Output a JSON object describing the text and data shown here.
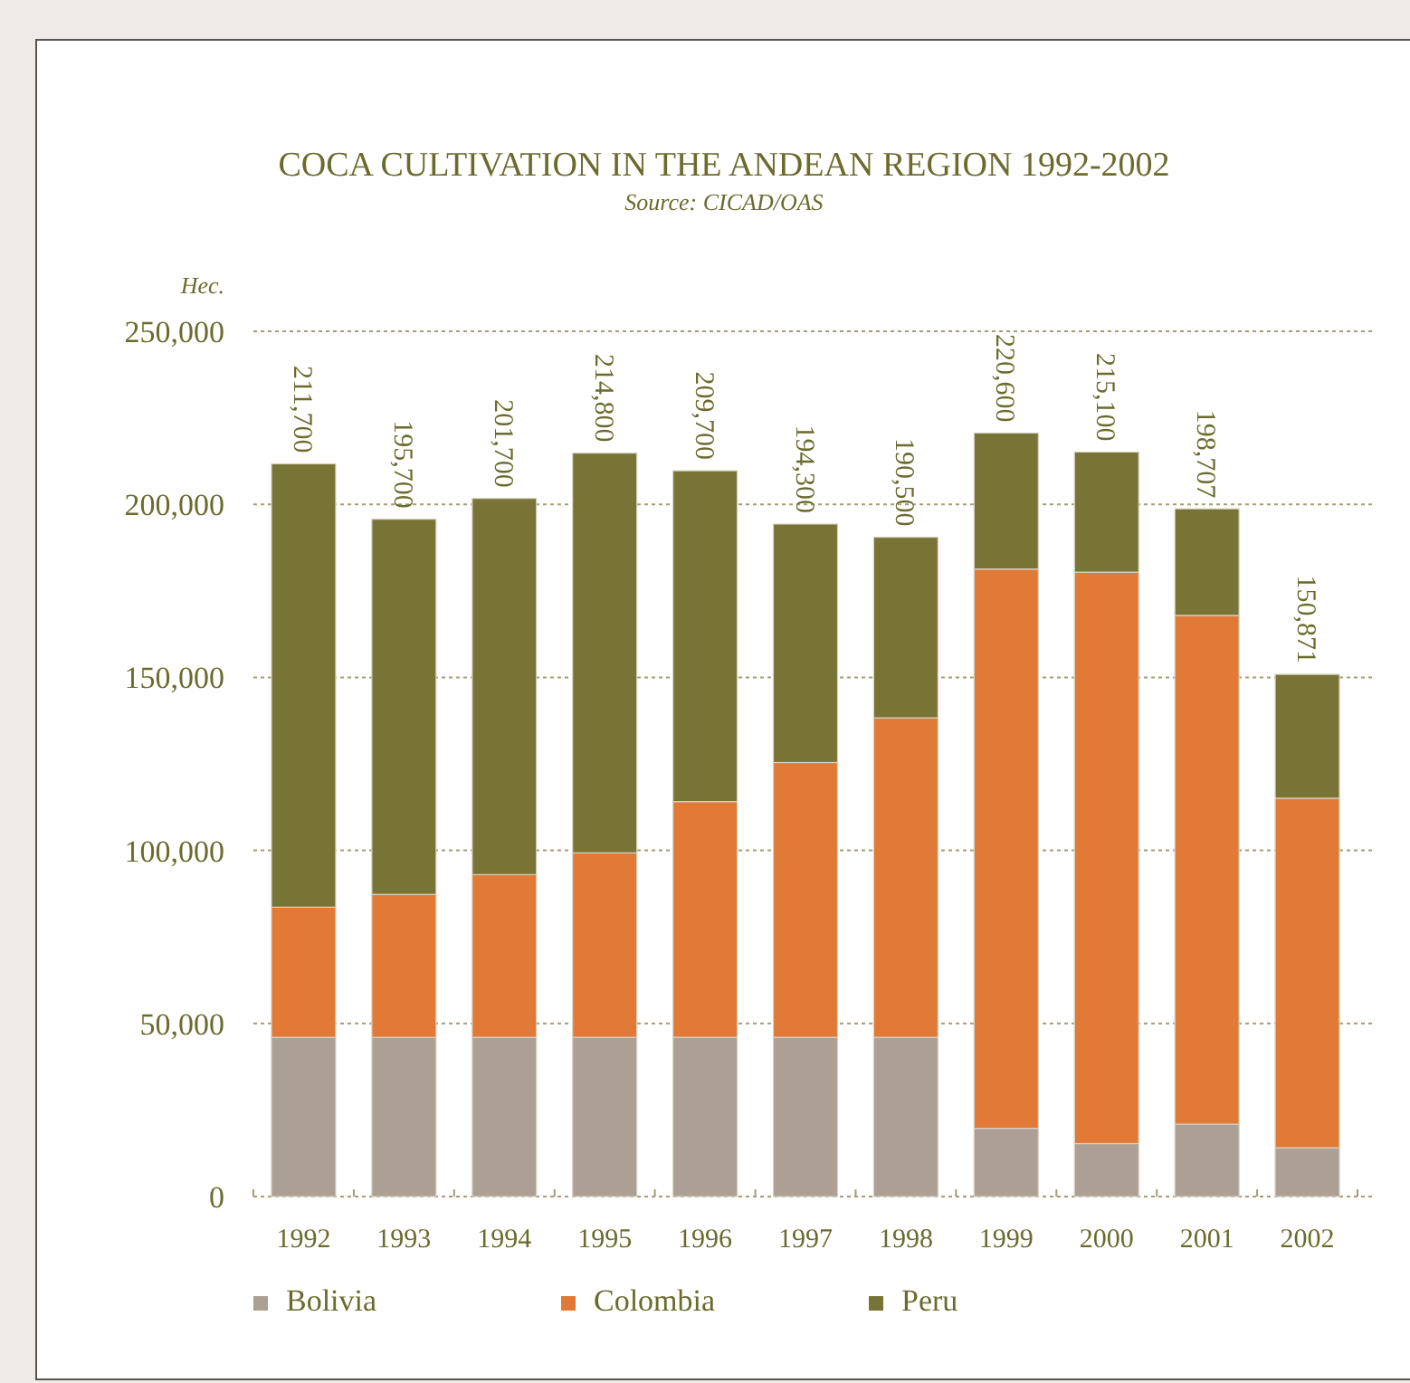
{
  "chart_data": {
    "type": "bar",
    "title": "COCA CULTIVATION IN THE ANDEAN REGION 1992-2002",
    "subtitle": "Source: CICAD/OAS",
    "ylabel": "Hec.",
    "categories": [
      "1992",
      "1993",
      "1994",
      "1995",
      "1996",
      "1997",
      "1998",
      "1999",
      "2000",
      "2001",
      "2002"
    ],
    "stacked": true,
    "series": [
      {
        "name": "Bolivia",
        "color": "#ac9f93",
        "values": [
          46000,
          46000,
          46000,
          46000,
          46000,
          46000,
          46000,
          19700,
          15300,
          20900,
          14100
        ]
      },
      {
        "name": "Colombia",
        "color": "#e07a36",
        "values": [
          37600,
          41300,
          47000,
          53300,
          68100,
          79400,
          92300,
          161600,
          165100,
          147000,
          101000
        ]
      },
      {
        "name": "Peru",
        "color": "#787436",
        "values": [
          128100,
          108400,
          108700,
          115500,
          95600,
          68900,
          52200,
          39300,
          34700,
          30807,
          35771
        ]
      }
    ],
    "totals": [
      "211,700",
      "195,700",
      "201,700",
      "214,800",
      "209,700",
      "194,300",
      "190,500",
      "220,600",
      "215,100",
      "198,707",
      "150,871"
    ],
    "ylim": [
      0,
      250000
    ],
    "yticks": [
      {
        "value": 0,
        "label": "0"
      },
      {
        "value": 50000,
        "label": "50,000"
      },
      {
        "value": 100000,
        "label": "100,000"
      },
      {
        "value": 150000,
        "label": "150,000"
      },
      {
        "value": 200000,
        "label": "200,000"
      },
      {
        "value": 250000,
        "label": "250,000"
      }
    ],
    "grid": "y",
    "legend": "bottom"
  }
}
